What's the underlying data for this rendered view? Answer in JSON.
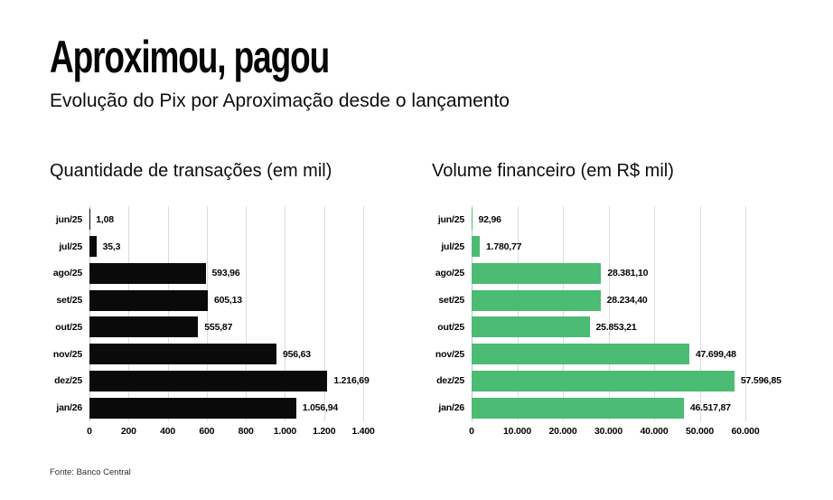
{
  "header": {
    "title": "Aproximou, pagou",
    "subtitle": "Evolução do Pix por Aproximação desde o lançamento"
  },
  "footer": {
    "source": "Fonte: Banco Central"
  },
  "colors": {
    "bar_black": "#0a0a0a",
    "bar_green": "#4cbb73",
    "grid": "#dcdcdc",
    "background": "#ffffff",
    "text": "#0d0d0d"
  },
  "chart_data": [
    {
      "type": "bar",
      "orientation": "horizontal",
      "title": "Quantidade de transações (em mil)",
      "categories": [
        "jun/25",
        "jul/25",
        "ago/25",
        "set/25",
        "out/25",
        "nov/25",
        "dez/25",
        "jan/26"
      ],
      "values": [
        1.08,
        35.3,
        593.96,
        605.13,
        555.87,
        956.63,
        1216.69,
        1056.94
      ],
      "value_labels": [
        "1,08",
        "35,3",
        "593,96",
        "605,13",
        "555,87",
        "956,63",
        "1.216,69",
        "1.056,94"
      ],
      "xlim": [
        0,
        1400
      ],
      "ticks": [
        0,
        200,
        400,
        600,
        800,
        1000,
        1200,
        1400
      ],
      "tick_labels": [
        "0",
        "200",
        "400",
        "600",
        "800",
        "1.000",
        "1.200",
        "1.400"
      ],
      "bar_color": "#0a0a0a",
      "grid": true,
      "legend": false
    },
    {
      "type": "bar",
      "orientation": "horizontal",
      "title": "Volume financeiro (em R$ mil)",
      "categories": [
        "jun/25",
        "jul/25",
        "ago/25",
        "set/25",
        "out/25",
        "nov/25",
        "dez/25",
        "jan/26"
      ],
      "values": [
        92.96,
        1780.77,
        28381.1,
        28234.4,
        25853.21,
        47699.48,
        57596.85,
        46517.87
      ],
      "value_labels": [
        "92,96",
        "1.780,77",
        "28.381,10",
        "28.234,40",
        "25.853,21",
        "47.699,48",
        "57.596,85",
        "46.517,87"
      ],
      "xlim": [
        0,
        60000
      ],
      "ticks": [
        0,
        10000,
        20000,
        30000,
        40000,
        50000,
        60000
      ],
      "tick_labels": [
        "0",
        "10.000",
        "20.000",
        "30.000",
        "40.000",
        "50.000",
        "60.000"
      ],
      "bar_color": "#4cbb73",
      "grid": true,
      "legend": false
    }
  ]
}
